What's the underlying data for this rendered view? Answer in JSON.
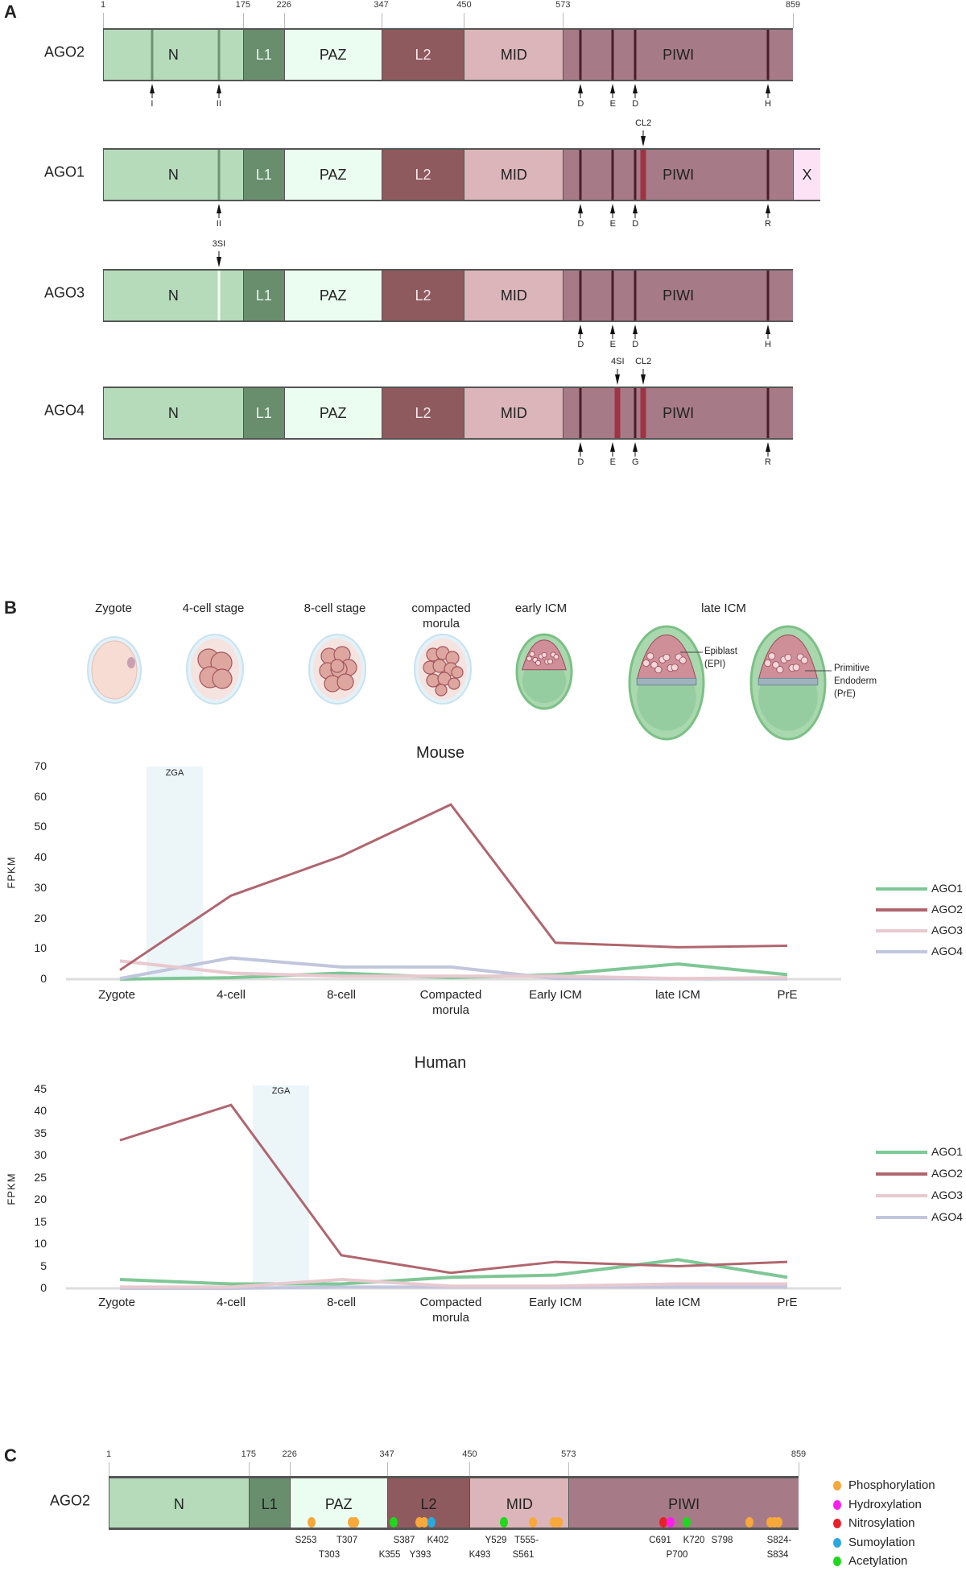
{
  "panel_a": {
    "letter": "A",
    "residue_ticks": [
      "1",
      "175",
      "226",
      "347",
      "450",
      "573",
      "859"
    ],
    "tick_residues": [
      1,
      175,
      226,
      347,
      450,
      573,
      859
    ],
    "domain_colors": {
      "N": "#b5dbbb",
      "L1": "#698e6e",
      "PAZ": "#ebfcf0",
      "L2": "#8e5a5e",
      "MID": "#dbb5b9",
      "PIWI": "#a67b87",
      "X": "#fde2f6"
    },
    "proteins": [
      {
        "name": "AGO2",
        "domains": [
          {
            "label": "N",
            "start": 1,
            "end": 175
          },
          {
            "label": "L1",
            "start": 175,
            "end": 226
          },
          {
            "label": "PAZ",
            "start": 226,
            "end": 347
          },
          {
            "label": "L2",
            "start": 347,
            "end": 450
          },
          {
            "label": "MID",
            "start": 450,
            "end": 573
          },
          {
            "label": "PIWI",
            "start": 573,
            "end": 859
          }
        ],
        "lines": [
          {
            "res": 62,
            "kind": "green"
          },
          {
            "res": 145,
            "kind": "green"
          },
          {
            "res": 595,
            "kind": "dark"
          },
          {
            "res": 635,
            "kind": "dark"
          },
          {
            "res": 663,
            "kind": "dark"
          },
          {
            "res": 828,
            "kind": "dark"
          }
        ],
        "below": [
          {
            "res": 62,
            "label": "I"
          },
          {
            "res": 145,
            "label": "II"
          },
          {
            "res": 595,
            "label": "D"
          },
          {
            "res": 635,
            "label": "E"
          },
          {
            "res": 663,
            "label": "D"
          },
          {
            "res": 828,
            "label": "H"
          }
        ],
        "above": []
      },
      {
        "name": "AGO1",
        "domains": [
          {
            "label": "N",
            "start": 1,
            "end": 175
          },
          {
            "label": "L1",
            "start": 175,
            "end": 226
          },
          {
            "label": "PAZ",
            "start": 226,
            "end": 347
          },
          {
            "label": "L2",
            "start": 347,
            "end": 450
          },
          {
            "label": "MID",
            "start": 450,
            "end": 573
          },
          {
            "label": "PIWI",
            "start": 573,
            "end": 859
          },
          {
            "label": "X",
            "start": 859,
            "end": 893
          }
        ],
        "lines": [
          {
            "res": 145,
            "kind": "green"
          },
          {
            "res": 595,
            "kind": "dark"
          },
          {
            "res": 635,
            "kind": "dark"
          },
          {
            "res": 663,
            "kind": "dark"
          },
          {
            "res": 673,
            "kind": "red"
          },
          {
            "res": 828,
            "kind": "dark"
          }
        ],
        "below": [
          {
            "res": 145,
            "label": "II"
          },
          {
            "res": 595,
            "label": "D"
          },
          {
            "res": 635,
            "label": "E"
          },
          {
            "res": 663,
            "label": "D"
          },
          {
            "res": 828,
            "label": "R"
          }
        ],
        "above": [
          {
            "res": 673,
            "label": "CL2"
          }
        ]
      },
      {
        "name": "AGO3",
        "domains": [
          {
            "label": "N",
            "start": 1,
            "end": 175
          },
          {
            "label": "L1",
            "start": 175,
            "end": 226
          },
          {
            "label": "PAZ",
            "start": 226,
            "end": 347
          },
          {
            "label": "L2",
            "start": 347,
            "end": 450
          },
          {
            "label": "MID",
            "start": 450,
            "end": 573
          },
          {
            "label": "PIWI",
            "start": 573,
            "end": 859
          }
        ],
        "lines": [
          {
            "res": 145,
            "kind": "white"
          },
          {
            "res": 595,
            "kind": "dark"
          },
          {
            "res": 635,
            "kind": "dark"
          },
          {
            "res": 663,
            "kind": "dark"
          },
          {
            "res": 828,
            "kind": "dark"
          }
        ],
        "below": [
          {
            "res": 595,
            "label": "D"
          },
          {
            "res": 635,
            "label": "E"
          },
          {
            "res": 663,
            "label": "D"
          },
          {
            "res": 828,
            "label": "H"
          }
        ],
        "above": [
          {
            "res": 145,
            "label": "3SI"
          }
        ]
      },
      {
        "name": "AGO4",
        "domains": [
          {
            "label": "N",
            "start": 1,
            "end": 175
          },
          {
            "label": "L1",
            "start": 175,
            "end": 226
          },
          {
            "label": "PAZ",
            "start": 226,
            "end": 347
          },
          {
            "label": "L2",
            "start": 347,
            "end": 450
          },
          {
            "label": "MID",
            "start": 450,
            "end": 573
          },
          {
            "label": "PIWI",
            "start": 573,
            "end": 859
          }
        ],
        "lines": [
          {
            "res": 595,
            "kind": "dark"
          },
          {
            "res": 641,
            "kind": "red"
          },
          {
            "res": 663,
            "kind": "dark"
          },
          {
            "res": 673,
            "kind": "red"
          },
          {
            "res": 828,
            "kind": "dark"
          }
        ],
        "below": [
          {
            "res": 595,
            "label": "D"
          },
          {
            "res": 635,
            "label": "E"
          },
          {
            "res": 663,
            "label": "G"
          },
          {
            "res": 828,
            "label": "R"
          }
        ],
        "above": [
          {
            "res": 641,
            "label": "4SI"
          },
          {
            "res": 673,
            "label": "CL2"
          }
        ]
      }
    ]
  },
  "panel_b": {
    "letter": "B",
    "stages": [
      {
        "label": "Zygote"
      },
      {
        "label": "4-cell stage"
      },
      {
        "label": "8-cell stage"
      },
      {
        "label": "compacted\nmorula"
      },
      {
        "label": "early ICM"
      },
      {
        "label": "late ICM"
      }
    ],
    "annotations": {
      "epiblast": "Epiblast\n(EPI)",
      "pre": "Primitive\nEndoderm\n(PrE)"
    }
  },
  "chart_data": [
    {
      "type": "line",
      "title": "Mouse",
      "ylabel": "FPKM",
      "xlabel": "",
      "categories": [
        "Zygote",
        "4-cell",
        "8-cell",
        "Compacted\nmorula",
        "Early ICM",
        "late ICM",
        "PrE"
      ],
      "ylim": [
        0,
        70
      ],
      "yticks": [
        0,
        10,
        20,
        30,
        40,
        50,
        60,
        70
      ],
      "shaded_region": {
        "label": "ZGA",
        "from_category": 0,
        "to_category": 1
      },
      "legend": "right",
      "grid": false,
      "series": [
        {
          "name": "AGO1",
          "color": "#7fc796",
          "values": [
            0,
            0.5,
            2,
            0.5,
            1.5,
            5,
            1.5
          ]
        },
        {
          "name": "AGO2",
          "color": "#b0666f",
          "values": [
            3,
            27.5,
            40.5,
            57.5,
            12,
            10.5,
            11
          ]
        },
        {
          "name": "AGO3",
          "color": "#e8c9cf",
          "values": [
            6,
            2,
            1,
            1,
            1,
            0.2,
            0.5
          ]
        },
        {
          "name": "AGO4",
          "color": "#c2c6dd",
          "values": [
            0.2,
            7,
            4,
            4,
            0.2,
            0.1,
            0.1
          ]
        }
      ]
    },
    {
      "type": "line",
      "title": "Human",
      "ylabel": "FPKM",
      "xlabel": "",
      "categories": [
        "Zygote",
        "4-cell",
        "8-cell",
        "Compacted\nmorula",
        "Early ICM",
        "late ICM",
        "PrE"
      ],
      "ylim": [
        0,
        45
      ],
      "yticks": [
        0,
        5,
        10,
        15,
        20,
        25,
        30,
        35,
        40,
        45
      ],
      "shaded_region": {
        "label": "ZGA",
        "from_category": 1,
        "to_category": 2
      },
      "legend": "right",
      "grid": false,
      "series": [
        {
          "name": "AGO1",
          "color": "#7fc796",
          "values": [
            2,
            1,
            1,
            2.5,
            3,
            6.5,
            2.5
          ]
        },
        {
          "name": "AGO2",
          "color": "#b0666f",
          "values": [
            33.5,
            41.5,
            7.5,
            3.5,
            6,
            5,
            6
          ]
        },
        {
          "name": "AGO3",
          "color": "#e8c9cf",
          "values": [
            0.3,
            0.3,
            2,
            0.5,
            0.5,
            1,
            1
          ]
        },
        {
          "name": "AGO4",
          "color": "#c2c6dd",
          "values": [
            0,
            0,
            0.3,
            0.3,
            0.3,
            0.3,
            0.3
          ]
        }
      ]
    }
  ],
  "panel_c": {
    "letter": "C",
    "protein": "AGO2",
    "residue_ticks": [
      "1",
      "175",
      "226",
      "347",
      "450",
      "573",
      "859"
    ],
    "tick_residues": [
      1,
      175,
      226,
      347,
      450,
      573,
      859
    ],
    "domains": [
      {
        "label": "N",
        "start": 1,
        "end": 175
      },
      {
        "label": "L1",
        "start": 175,
        "end": 226
      },
      {
        "label": "PAZ",
        "start": 226,
        "end": 347
      },
      {
        "label": "L2",
        "start": 347,
        "end": 450
      },
      {
        "label": "MID",
        "start": 450,
        "end": 573
      },
      {
        "label": "PIWI",
        "start": 573,
        "end": 859
      }
    ],
    "modification_colors": {
      "Phosphorylation": "#f7a83a",
      "Hydroxylation": "#ff1cf0",
      "Nitrosylation": "#e8202a",
      "Sumoylation": "#2aa8e0",
      "Acetylation": "#1ed81e"
    },
    "legend": [
      "Phosphorylation",
      "Hydroxylation",
      "Nitrosylation",
      "Sumoylation",
      "Acetylation"
    ],
    "sites": [
      {
        "res": 253,
        "type": "Phosphorylation"
      },
      {
        "res": 303,
        "type": "Phosphorylation"
      },
      {
        "res": 307,
        "type": "Phosphorylation"
      },
      {
        "res": 355,
        "type": "Acetylation"
      },
      {
        "res": 387,
        "type": "Phosphorylation"
      },
      {
        "res": 393,
        "type": "Phosphorylation"
      },
      {
        "res": 402,
        "type": "Sumoylation"
      },
      {
        "res": 493,
        "type": "Acetylation"
      },
      {
        "res": 529,
        "type": "Phosphorylation"
      },
      {
        "res": 555,
        "type": "Phosphorylation"
      },
      {
        "res": 561,
        "type": "Phosphorylation"
      },
      {
        "res": 691,
        "type": "Nitrosylation"
      },
      {
        "res": 700,
        "type": "Hydroxylation"
      },
      {
        "res": 720,
        "type": "Acetylation"
      },
      {
        "res": 798,
        "type": "Phosphorylation"
      },
      {
        "res": 824,
        "type": "Phosphorylation"
      },
      {
        "res": 829,
        "type": "Phosphorylation"
      },
      {
        "res": 834,
        "type": "Phosphorylation"
      }
    ],
    "labels_row1": [
      {
        "res": 253,
        "text": "S253"
      },
      {
        "res": 307,
        "text": "T307"
      },
      {
        "res": 387,
        "text": "S387"
      },
      {
        "res": 402,
        "text": "K402"
      },
      {
        "res": 529,
        "text": "Y529"
      },
      {
        "res": 559,
        "text": "T555-"
      },
      {
        "res": 691,
        "text": "C691"
      },
      {
        "res": 720,
        "text": "K720"
      },
      {
        "res": 798,
        "text": "S798"
      },
      {
        "res": 829,
        "text": "S824-"
      }
    ],
    "labels_row2": [
      {
        "res": 303,
        "text": "T303"
      },
      {
        "res": 355,
        "text": "K355"
      },
      {
        "res": 393,
        "text": "Y393"
      },
      {
        "res": 493,
        "text": "K493"
      },
      {
        "res": 561,
        "text": "S561"
      },
      {
        "res": 700,
        "text": "P700"
      },
      {
        "res": 829,
        "text": "S834"
      }
    ]
  }
}
